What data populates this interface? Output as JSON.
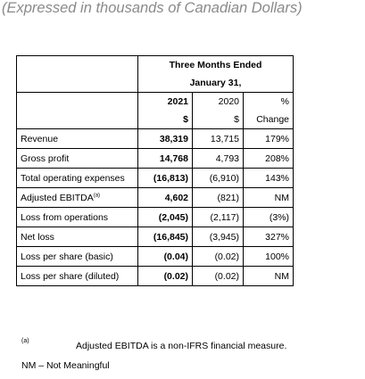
{
  "heading": "(Expressed in thousands of Canadian Dollars)",
  "table": {
    "header": {
      "period": "Three Months Ended",
      "date": "January 31,",
      "columns": [
        {
          "year": "2021",
          "unit": "$"
        },
        {
          "year": "2020",
          "unit": "$"
        },
        {
          "year": "%",
          "unit": "Change"
        }
      ]
    },
    "rows": [
      {
        "label": "Revenue",
        "cells": [
          "38,319",
          "13,715",
          "179%"
        ]
      },
      {
        "label": "Gross profit",
        "cells": [
          "14,768",
          "4,793",
          "208%"
        ]
      },
      {
        "label": "Total operating expenses",
        "cells": [
          "(16,813)",
          "(6,910)",
          "143%"
        ]
      },
      {
        "label": "Adjusted EBITDA",
        "note": "(a)",
        "cells": [
          "4,602",
          "(821)",
          "NM"
        ]
      },
      {
        "label": "Loss from operations",
        "cells": [
          "(2,045)",
          "(2,117)",
          "(3%)"
        ]
      },
      {
        "label": "Net loss",
        "cells": [
          "(16,845)",
          "(3,945)",
          "327%"
        ]
      },
      {
        "label": "Loss per share (basic)",
        "cells": [
          "(0.04)",
          "(0.02)",
          "100%"
        ]
      },
      {
        "label": "Loss per share (diluted)",
        "cells": [
          "(0.02)",
          "(0.02)",
          "NM"
        ]
      }
    ]
  },
  "footnotes": [
    {
      "marker": "(a)",
      "text": "Adjusted EBITDA is a non-IFRS financial measure."
    }
  ],
  "abbreviation": "NM – Not Meaningful"
}
